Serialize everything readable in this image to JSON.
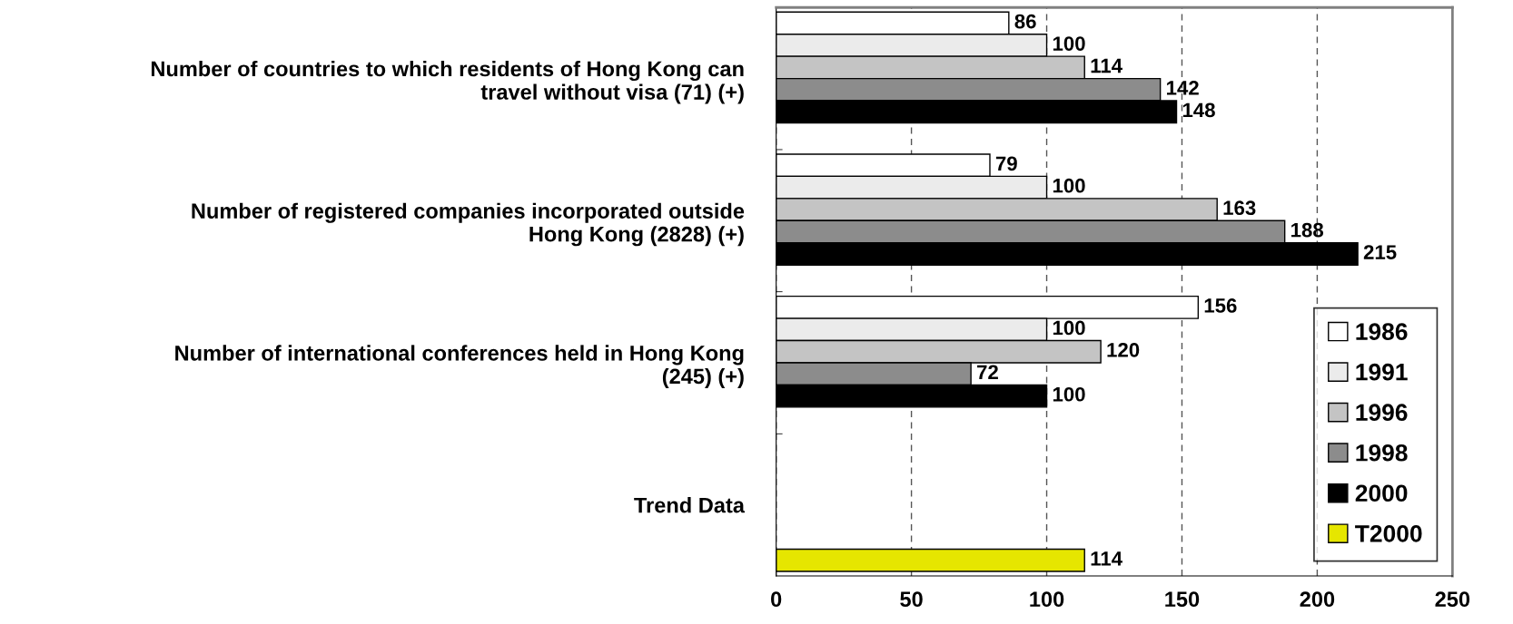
{
  "chart_data": {
    "type": "bar",
    "orientation": "horizontal",
    "categories": [
      "Number of countries to which residents of Hong Kong can\ntravel without visa (71) (+)",
      "Number of registered companies incorporated outside\nHong Kong (2828) (+)",
      "Number of international conferences held in Hong Kong\n(245) (+)",
      "Trend Data"
    ],
    "series": [
      {
        "name": "1986",
        "color": "#ffffff",
        "values": [
          86,
          79,
          156,
          null
        ]
      },
      {
        "name": "1991",
        "color": "#ebebeb",
        "values": [
          100,
          100,
          100,
          null
        ]
      },
      {
        "name": "1996",
        "color": "#c4c4c4",
        "values": [
          114,
          163,
          120,
          null
        ]
      },
      {
        "name": "1998",
        "color": "#8c8c8c",
        "values": [
          142,
          188,
          72,
          null
        ]
      },
      {
        "name": "2000",
        "color": "#000000",
        "values": [
          148,
          215,
          100,
          null
        ]
      },
      {
        "name": "T2000",
        "color": "#e6e600",
        "values": [
          null,
          null,
          null,
          114
        ]
      }
    ],
    "xlim": [
      0,
      250
    ],
    "xticks": [
      0,
      50,
      100,
      150,
      200,
      250
    ],
    "grid": "x",
    "legend": "bottom right",
    "data_labels": true
  }
}
